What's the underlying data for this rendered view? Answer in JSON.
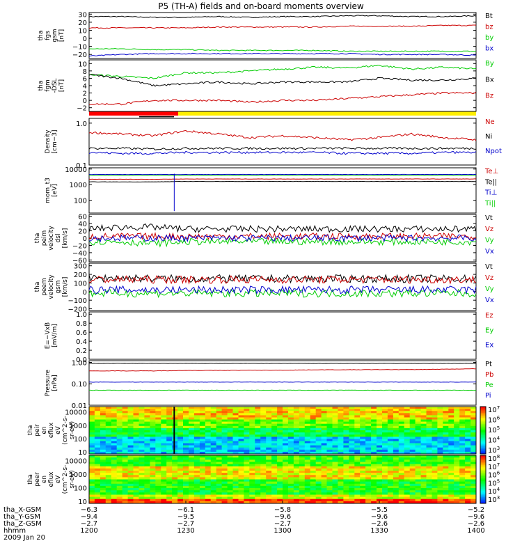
{
  "title": "P5 (TH-A) fields and on-board moments overview",
  "chart_data": [
    {
      "type": "line",
      "id": "fgs",
      "ylabel": [
        "tha",
        "fgs",
        "gsm",
        "[nT]"
      ],
      "ylim": [
        -25,
        32
      ],
      "yticks": [
        [
          "30",
          30
        ],
        [
          "20",
          20
        ],
        [
          "10",
          10
        ],
        [
          "0",
          0
        ],
        [
          "−10",
          -10
        ],
        [
          "−20",
          -20
        ]
      ],
      "series": [
        {
          "name": "Bt",
          "color": "#000000",
          "values": [
            27,
            27,
            26,
            26,
            27,
            26,
            27,
            27,
            28,
            28,
            27,
            27,
            28
          ]
        },
        {
          "name": "bz",
          "color": "#cc0000",
          "values": [
            13,
            13,
            13,
            13,
            14,
            14,
            14,
            14,
            15,
            15,
            15,
            16,
            16
          ]
        },
        {
          "name": "by",
          "color": "#00cc00",
          "values": [
            -13,
            -13,
            -14,
            -14,
            -15,
            -15,
            -15,
            -15,
            -16,
            -16,
            -16,
            -16,
            -16
          ]
        },
        {
          "name": "bx",
          "color": "#0000cc",
          "values": [
            -22,
            -20,
            -19,
            -19,
            -19,
            -19,
            -19,
            -19,
            -19,
            -20,
            -20,
            -20,
            -21
          ]
        }
      ]
    },
    {
      "type": "line",
      "id": "fgm",
      "ylabel": [
        "tha",
        "fgm",
        "-DSL",
        "[nT]"
      ],
      "ylim": [
        -3,
        11
      ],
      "yticks": [
        [
          "10",
          10
        ],
        [
          "8",
          8
        ],
        [
          "6",
          6
        ],
        [
          "4",
          4
        ],
        [
          "2",
          2
        ],
        [
          "0",
          0
        ],
        [
          "−2",
          -2
        ]
      ],
      "series": [
        {
          "name": "By",
          "color": "#00cc00",
          "values": [
            7,
            6.5,
            6,
            7.5,
            7.5,
            8,
            8.5,
            9,
            8.8,
            9.5,
            8.5,
            9,
            8.5
          ]
        },
        {
          "name": "Bx",
          "color": "#000000",
          "values": [
            7,
            6,
            4,
            4.5,
            5,
            4.5,
            5,
            5,
            5,
            6,
            5.5,
            5.5,
            6
          ]
        },
        {
          "name": "Bz",
          "color": "#cc0000",
          "values": [
            -1,
            -1,
            0,
            0,
            0,
            -0.5,
            0,
            0,
            0.5,
            1,
            1.5,
            2,
            2
          ]
        }
      ]
    },
    {
      "type": "line",
      "id": "density",
      "log": true,
      "ylabel": [
        "Density",
        "[cm−3]"
      ],
      "ylim": [
        0.1,
        1.3
      ],
      "yticks": [
        [
          "1.0",
          1.0
        ],
        [
          "0.1",
          0.1
        ]
      ],
      "series": [
        {
          "name": "Ne",
          "color": "#cc0000",
          "values": [
            0.6,
            0.55,
            0.5,
            0.65,
            0.55,
            0.45,
            0.5,
            0.45,
            0.4,
            0.45,
            0.55,
            0.45,
            0.4
          ]
        },
        {
          "name": "Ni",
          "color": "#000000",
          "values": [
            0.25,
            0.25,
            0.24,
            0.25,
            0.25,
            0.25,
            0.25,
            0.25,
            0.25,
            0.25,
            0.25,
            0.25,
            0.25
          ]
        },
        {
          "name": "Npot",
          "color": "#0000cc",
          "values": [
            0.2,
            0.19,
            0.19,
            0.2,
            0.2,
            0.2,
            0.2,
            0.2,
            0.19,
            0.19,
            0.19,
            0.2,
            0.2
          ]
        }
      ]
    },
    {
      "type": "line",
      "id": "temp",
      "log": true,
      "ylabel": [
        "mom_t3",
        "[eV]"
      ],
      "ylim": [
        15,
        12000
      ],
      "yticks": [
        [
          "10000",
          10000
        ],
        [
          "1000",
          1000
        ],
        [
          "100",
          100
        ]
      ],
      "series": [
        {
          "name": "Te⊥",
          "color": "#cc0000",
          "values": [
            2200,
            2200,
            2200,
            2300,
            2300,
            2300,
            2300,
            2300,
            2300,
            2300,
            2300,
            2300,
            2300
          ]
        },
        {
          "name": "Te||",
          "color": "#000000",
          "values": [
            1500,
            1500,
            1500,
            1600,
            1600,
            1600,
            1600,
            1600,
            1600,
            1600,
            1600,
            1600,
            1600
          ]
        },
        {
          "name": "Ti⊥",
          "color": "#0000cc",
          "values": [
            4500,
            4500,
            4500,
            4500,
            4500,
            4500,
            4500,
            4500,
            4500,
            4500,
            4500,
            4500,
            4500
          ]
        },
        {
          "name": "Ti||",
          "color": "#00cc00",
          "values": [
            4000,
            4000,
            4000,
            4000,
            4000,
            4000,
            4000,
            4000,
            4000,
            4000,
            4000,
            4000,
            4000
          ]
        }
      ]
    },
    {
      "type": "line",
      "id": "peim",
      "ylabel": [
        "tha",
        "peim",
        "velocity",
        "dsl",
        "[km/s]"
      ],
      "ylim": [
        -65,
        65
      ],
      "yticks": [
        [
          "60",
          60
        ],
        [
          "40",
          40
        ],
        [
          "20",
          20
        ],
        [
          "0",
          0
        ],
        [
          "−20",
          -20
        ],
        [
          "−40",
          -40
        ],
        [
          "−60",
          -60
        ]
      ],
      "series": [
        {
          "name": "Vt",
          "color": "#000000",
          "values": [
            25,
            30,
            30,
            25,
            25,
            25,
            25,
            25,
            25,
            25,
            25,
            25,
            25
          ]
        },
        {
          "name": "Vz",
          "color": "#cc0000",
          "values": [
            5,
            5,
            5,
            5,
            5,
            5,
            5,
            5,
            5,
            5,
            5,
            5,
            5
          ]
        },
        {
          "name": "Vy",
          "color": "#00cc00",
          "values": [
            -10,
            -10,
            -15,
            -10,
            -10,
            -10,
            -10,
            -10,
            -10,
            -10,
            -10,
            -10,
            -10
          ]
        },
        {
          "name": "Vx",
          "color": "#0000cc",
          "values": [
            0,
            0,
            0,
            0,
            0,
            0,
            0,
            0,
            0,
            0,
            0,
            0,
            0
          ]
        }
      ]
    },
    {
      "type": "line",
      "id": "peem",
      "ylabel": [
        "tha",
        "peem",
        "velocity",
        "gsm",
        "[km/s]"
      ],
      "ylim": [
        -220,
        330
      ],
      "yticks": [
        [
          "300",
          300
        ],
        [
          "200",
          200
        ],
        [
          "100",
          100
        ],
        [
          "0",
          0
        ],
        [
          "−100",
          -100
        ],
        [
          "−200",
          -200
        ]
      ],
      "series": [
        {
          "name": "Vt",
          "color": "#000000",
          "values": [
            150,
            160,
            150,
            150,
            150,
            150,
            150,
            150,
            150,
            150,
            150,
            150,
            150
          ]
        },
        {
          "name": "Vz",
          "color": "#cc0000",
          "values": [
            140,
            140,
            140,
            140,
            140,
            140,
            140,
            140,
            140,
            140,
            140,
            140,
            140
          ]
        },
        {
          "name": "Vy",
          "color": "#00cc00",
          "values": [
            -20,
            -20,
            -20,
            -20,
            -20,
            -20,
            -20,
            -20,
            -20,
            -20,
            -20,
            -20,
            -20
          ]
        },
        {
          "name": "Vx",
          "color": "#0000cc",
          "values": [
            20,
            20,
            20,
            20,
            20,
            20,
            20,
            20,
            20,
            20,
            20,
            20,
            20
          ]
        }
      ]
    },
    {
      "type": "line",
      "id": "efield",
      "ylabel": [
        "E=−VxB",
        "[mV/m]"
      ],
      "ylim": [
        0,
        1.05
      ],
      "yticks": [
        [
          "1.0",
          1.0
        ],
        [
          "0.8",
          0.8
        ],
        [
          "0.6",
          0.6
        ],
        [
          "0.4",
          0.4
        ],
        [
          "0.2",
          0.2
        ],
        [
          "0.0",
          0.0
        ]
      ],
      "series": [
        {
          "name": "Ez",
          "color": "#cc0000",
          "values": []
        },
        {
          "name": "Ey",
          "color": "#00cc00",
          "values": []
        },
        {
          "name": "Ex",
          "color": "#0000cc",
          "values": []
        }
      ]
    },
    {
      "type": "line",
      "id": "pressure",
      "log": true,
      "ylabel": [
        "Pressure",
        "[nPa]"
      ],
      "ylim": [
        0.01,
        1.2
      ],
      "yticks": [
        [
          "1.00",
          1.0
        ],
        [
          "0.10",
          0.1
        ],
        [
          "0.01",
          0.01
        ]
      ],
      "series": [
        {
          "name": "Pt",
          "color": "#000000",
          "values": [
            0.9,
            0.9,
            0.9,
            0.9,
            0.9,
            0.9,
            0.9,
            0.9,
            0.9,
            0.9,
            0.9,
            0.9,
            0.9
          ]
        },
        {
          "name": "Pb",
          "color": "#cc0000",
          "values": [
            0.4,
            0.4,
            0.4,
            0.42,
            0.42,
            0.43,
            0.43,
            0.45,
            0.45,
            0.46,
            0.46,
            0.48,
            0.5
          ]
        },
        {
          "name": "Pe",
          "color": "#00cc00",
          "values": [
            0.05,
            0.05,
            0.05,
            0.05,
            0.05,
            0.05,
            0.05,
            0.05,
            0.05,
            0.05,
            0.05,
            0.05,
            0.05
          ]
        },
        {
          "name": "Pi",
          "color": "#0000cc",
          "values": [
            0.12,
            0.12,
            0.12,
            0.12,
            0.12,
            0.12,
            0.12,
            0.12,
            0.12,
            0.12,
            0.12,
            0.12,
            0.12
          ]
        }
      ]
    },
    {
      "type": "heatmap",
      "id": "peir",
      "ylabel": [
        "tha",
        "peir",
        "en",
        "eflux",
        "eV",
        "(cm^2-s-",
        "sr-eV)"
      ],
      "ylim": [
        7,
        25000
      ],
      "yticks": [
        [
          "10000",
          10000
        ],
        [
          "1000",
          1000
        ],
        [
          "100",
          100
        ],
        [
          "10",
          10
        ]
      ],
      "colorbar_ticks": [
        "10^7",
        "10^6",
        "10^5",
        "10^4",
        "10^3"
      ]
    },
    {
      "type": "heatmap",
      "id": "peer",
      "ylabel": [
        "tha",
        "peer",
        "en",
        "eflux",
        "eV",
        "(cm^2-s-",
        "sr-eV)"
      ],
      "ylim": [
        7,
        25000
      ],
      "yticks": [
        [
          "10000",
          10000
        ],
        [
          "1000",
          1000
        ],
        [
          "100",
          100
        ],
        [
          "10",
          10
        ]
      ],
      "colorbar_ticks": [
        "10^8",
        "10^7",
        "10^6",
        "10^5",
        "10^4",
        "10^3"
      ]
    }
  ],
  "xaxis": {
    "rows": [
      {
        "label": "tha_X-GSM",
        "values": [
          "−6.3",
          "−6.1",
          "−5.8",
          "−5.5",
          "−5.2"
        ]
      },
      {
        "label": "tha_Y-GSM",
        "values": [
          "−9.4",
          "−9.5",
          "−9.6",
          "−9.6",
          "−9.6"
        ]
      },
      {
        "label": "tha_Z-GSM",
        "values": [
          "−2.7",
          "−2.7",
          "−2.7",
          "−2.6",
          "−2.6"
        ]
      },
      {
        "label": "hhmm",
        "values": [
          "1200",
          "1230",
          "1300",
          "1330",
          "1400"
        ]
      }
    ],
    "date": "2009 Jan 20"
  }
}
